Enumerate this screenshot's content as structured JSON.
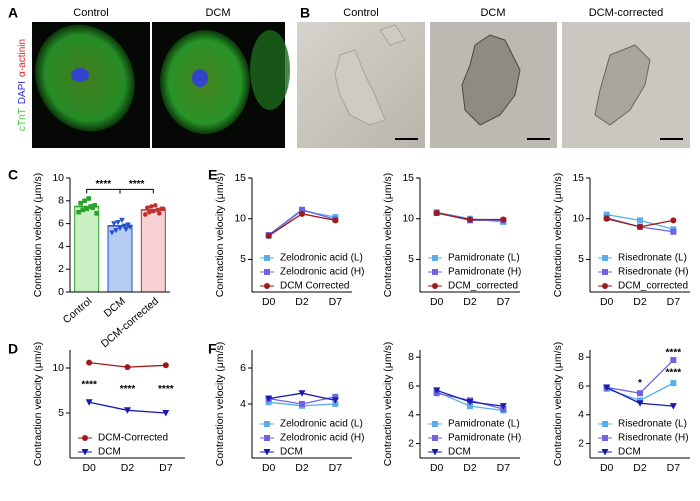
{
  "panel_labels": [
    "A",
    "B",
    "C",
    "D",
    "E",
    "F"
  ],
  "panel_a": {
    "titles": [
      "Control",
      "DCM"
    ],
    "stain_labels": [
      {
        "text": "cTnT",
        "color": "#3cc43c"
      },
      {
        "text": "DAPI",
        "color": "#2b2bd8"
      },
      {
        "text": "α-actinin",
        "color": "#d42020"
      }
    ]
  },
  "panel_b": {
    "titles": [
      "Control",
      "DCM",
      "DCM-corrected"
    ]
  },
  "chart_data": [
    {
      "type": "bar",
      "ylabel": "Contraction velocity (μm/s)",
      "categories": [
        "Control",
        "DCM",
        "DCM-corrected"
      ],
      "values": [
        7.5,
        5.8,
        7.2
      ],
      "colors": [
        "#c8f0c2",
        "#b6cdf2",
        "#f8d2d2"
      ],
      "point_colors": [
        "#2ca02c",
        "#2050d0",
        "#c03030"
      ],
      "points": [
        [
          7.0,
          7.2,
          7.3,
          7.5,
          7.6,
          7.8,
          8.0,
          8.2,
          7.4,
          6.9
        ],
        [
          5.2,
          5.4,
          5.6,
          5.8,
          5.9,
          6.0,
          6.1,
          6.3,
          5.5,
          5.7
        ],
        [
          6.8,
          7.0,
          7.1,
          7.2,
          7.3,
          7.4,
          7.5,
          7.6,
          6.9,
          7.3
        ]
      ],
      "ylim": [
        0,
        10
      ],
      "yticks": [
        0,
        2,
        4,
        6,
        8,
        10
      ],
      "annotations": [
        {
          "text": "****",
          "from": "Control",
          "to": "DCM",
          "y": 9.0
        },
        {
          "text": "****",
          "from": "DCM",
          "to": "DCM-corrected",
          "y": 9.0
        }
      ]
    },
    {
      "type": "line",
      "ylabel": "Contraction velocity (μm/s)",
      "categories": [
        "D0",
        "D2",
        "D7"
      ],
      "legend": "lower left",
      "series": [
        {
          "name": "DCM-Corrected",
          "color": "#a01818",
          "marker": "circle",
          "values": [
            10.6,
            10.1,
            10.3
          ]
        },
        {
          "name": "DCM",
          "color": "#1a1ab0",
          "marker": "triangle-down",
          "values": [
            6.2,
            5.3,
            5.0
          ]
        }
      ],
      "ylim": [
        0,
        12
      ],
      "yticks": [
        5,
        10
      ],
      "annotations": [
        {
          "text": "****",
          "x": "D0",
          "y": 8.1
        },
        {
          "text": "****",
          "x": "D2",
          "y": 7.6
        },
        {
          "text": "****",
          "x": "D7",
          "y": 7.6
        }
      ]
    },
    {
      "type": "line",
      "ylabel": "Contraction velocity (μm/s)",
      "categories": [
        "D0",
        "D2",
        "D7"
      ],
      "legend": "lower left",
      "series": [
        {
          "name": "Zelodronic acid (L)",
          "color": "#5aaee8",
          "marker": "square",
          "values": [
            7.9,
            11.0,
            10.2
          ]
        },
        {
          "name": "Zelodronic acid (H)",
          "color": "#6b63e0",
          "marker": "square",
          "values": [
            8.0,
            11.1,
            9.9
          ]
        },
        {
          "name": "DCM Corrected",
          "color": "#a01818",
          "marker": "circle",
          "values": [
            7.9,
            10.6,
            9.8
          ]
        }
      ],
      "ylim": [
        1,
        15
      ],
      "yticks": [
        5,
        10,
        15
      ]
    },
    {
      "type": "line",
      "ylabel": "Contraction velocity (μm/s)",
      "categories": [
        "D0",
        "D2",
        "D7"
      ],
      "legend": "lower left",
      "series": [
        {
          "name": "Pamidronate (L)",
          "color": "#5aaee8",
          "marker": "square",
          "values": [
            10.8,
            10.0,
            9.6
          ]
        },
        {
          "name": "Pamidronate (H)",
          "color": "#6b63e0",
          "marker": "square",
          "values": [
            10.7,
            9.8,
            9.8
          ]
        },
        {
          "name": "DCM_corrected",
          "color": "#a01818",
          "marker": "circle",
          "values": [
            10.7,
            9.9,
            9.9
          ]
        }
      ],
      "ylim": [
        1,
        15
      ],
      "yticks": [
        5,
        10,
        15
      ]
    },
    {
      "type": "line",
      "ylabel": "Contraction velocity (μm/s)",
      "categories": [
        "D0",
        "D2",
        "D7"
      ],
      "legend": "lower left",
      "series": [
        {
          "name": "Risedronate (L)",
          "color": "#5aaee8",
          "marker": "square",
          "values": [
            10.5,
            9.8,
            8.7
          ]
        },
        {
          "name": "Risedronate (H)",
          "color": "#6b63e0",
          "marker": "square",
          "values": [
            10.1,
            9.0,
            8.4
          ]
        },
        {
          "name": "DCM_corrected",
          "color": "#a01818",
          "marker": "circle",
          "values": [
            10.0,
            9.0,
            9.8
          ]
        }
      ],
      "ylim": [
        1,
        15
      ],
      "yticks": [
        5,
        10,
        15
      ]
    },
    {
      "type": "line",
      "ylabel": "Contraction velocity (μm/s)",
      "categories": [
        "D0",
        "D2",
        "D7"
      ],
      "legend": "lower left",
      "series": [
        {
          "name": "Zelodronic acid (L)",
          "color": "#5aaee8",
          "marker": "square",
          "values": [
            4.1,
            3.9,
            4.0
          ]
        },
        {
          "name": "Zelodronic acid (H)",
          "color": "#6b63e0",
          "marker": "square",
          "values": [
            4.3,
            4.0,
            4.4
          ]
        },
        {
          "name": "DCM",
          "color": "#1a1ab0",
          "marker": "triangle-down",
          "values": [
            4.3,
            4.6,
            4.2
          ]
        }
      ],
      "ylim": [
        1,
        7
      ],
      "yticks": [
        4,
        6
      ]
    },
    {
      "type": "line",
      "ylabel": "Contraction velocity (μm/s)",
      "categories": [
        "D0",
        "D2",
        "D7"
      ],
      "legend": "lower left",
      "series": [
        {
          "name": "Pamidronate (L)",
          "color": "#5aaee8",
          "marker": "square",
          "values": [
            5.6,
            4.6,
            4.3
          ]
        },
        {
          "name": "Pamidronate (H)",
          "color": "#6b63e0",
          "marker": "square",
          "values": [
            5.5,
            5.0,
            4.4
          ]
        },
        {
          "name": "DCM",
          "color": "#1a1ab0",
          "marker": "triangle-down",
          "values": [
            5.7,
            4.9,
            4.6
          ]
        }
      ],
      "ylim": [
        1,
        8.5
      ],
      "yticks": [
        2,
        4,
        6,
        8
      ]
    },
    {
      "type": "line",
      "ylabel": "Contraction velocity (μm/s)",
      "categories": [
        "D0",
        "D2",
        "D7"
      ],
      "legend": "lower left",
      "series": [
        {
          "name": "Risedronate (L)",
          "color": "#5aaee8",
          "marker": "square",
          "values": [
            5.8,
            5.0,
            6.2
          ]
        },
        {
          "name": "Risedronate (H)",
          "color": "#6b63e0",
          "marker": "square",
          "values": [
            5.9,
            5.5,
            7.8
          ]
        },
        {
          "name": "DCM",
          "color": "#1a1ab0",
          "marker": "triangle-down",
          "values": [
            5.9,
            4.8,
            4.6
          ]
        }
      ],
      "ylim": [
        1,
        8.5
      ],
      "yticks": [
        2,
        4,
        6,
        8
      ],
      "annotations": [
        {
          "text": "*",
          "x": "D2",
          "y": 6.2
        },
        {
          "text": "****",
          "x": "D7",
          "y": 8.3
        },
        {
          "text": "****",
          "x": "D7",
          "y": 6.9
        }
      ]
    }
  ]
}
